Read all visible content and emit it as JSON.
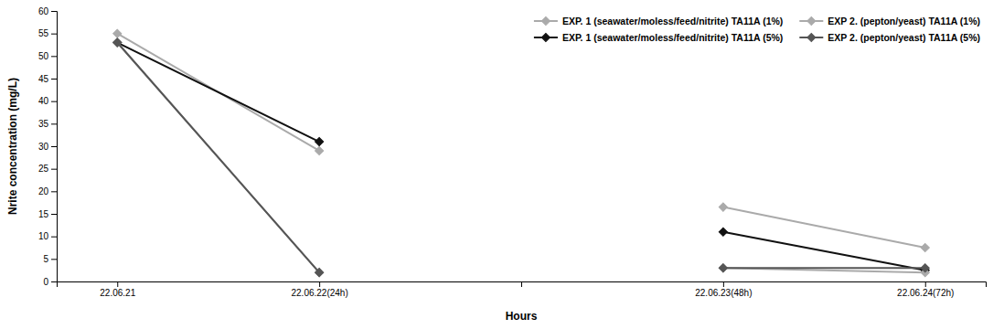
{
  "chart_data": {
    "type": "line",
    "categories": [
      "22.06.21",
      "22.06.22(24h)",
      null,
      "22.06.23(48h)",
      "22.06.24(72h)"
    ],
    "x_label": "Hours",
    "y_label": "Nrite concentration (mg/L)",
    "series": [
      {
        "name": "EXP. 1 (seawater/moless/feed/nitrite) TA11A (1%)",
        "color": "#aaaaaa",
        "values": [
          55,
          29,
          null,
          16.5,
          7.5
        ]
      },
      {
        "name": "EXP. 1 (seawater/moless/feed/nitrite) TA11A (5%)",
        "color": "#111111",
        "values": [
          53,
          31,
          null,
          11,
          2.5
        ]
      },
      {
        "name": "EXP 2. (pepton/yeast) TA11A (1%)",
        "color": "#aaaaaa",
        "values": [
          53,
          2,
          null,
          3,
          2
        ]
      },
      {
        "name": "EXP 2. (pepton/yeast) TA11A (5%)",
        "color": "#555555",
        "values": [
          53,
          2,
          null,
          3,
          3
        ]
      }
    ],
    "ylim": [
      0,
      60
    ],
    "yticks": [
      0,
      5,
      10,
      15,
      20,
      25,
      30,
      35,
      40,
      45,
      50,
      55,
      60
    ],
    "marker": "diamond",
    "line_style": "solid",
    "grid": false,
    "legend": "upper right"
  }
}
